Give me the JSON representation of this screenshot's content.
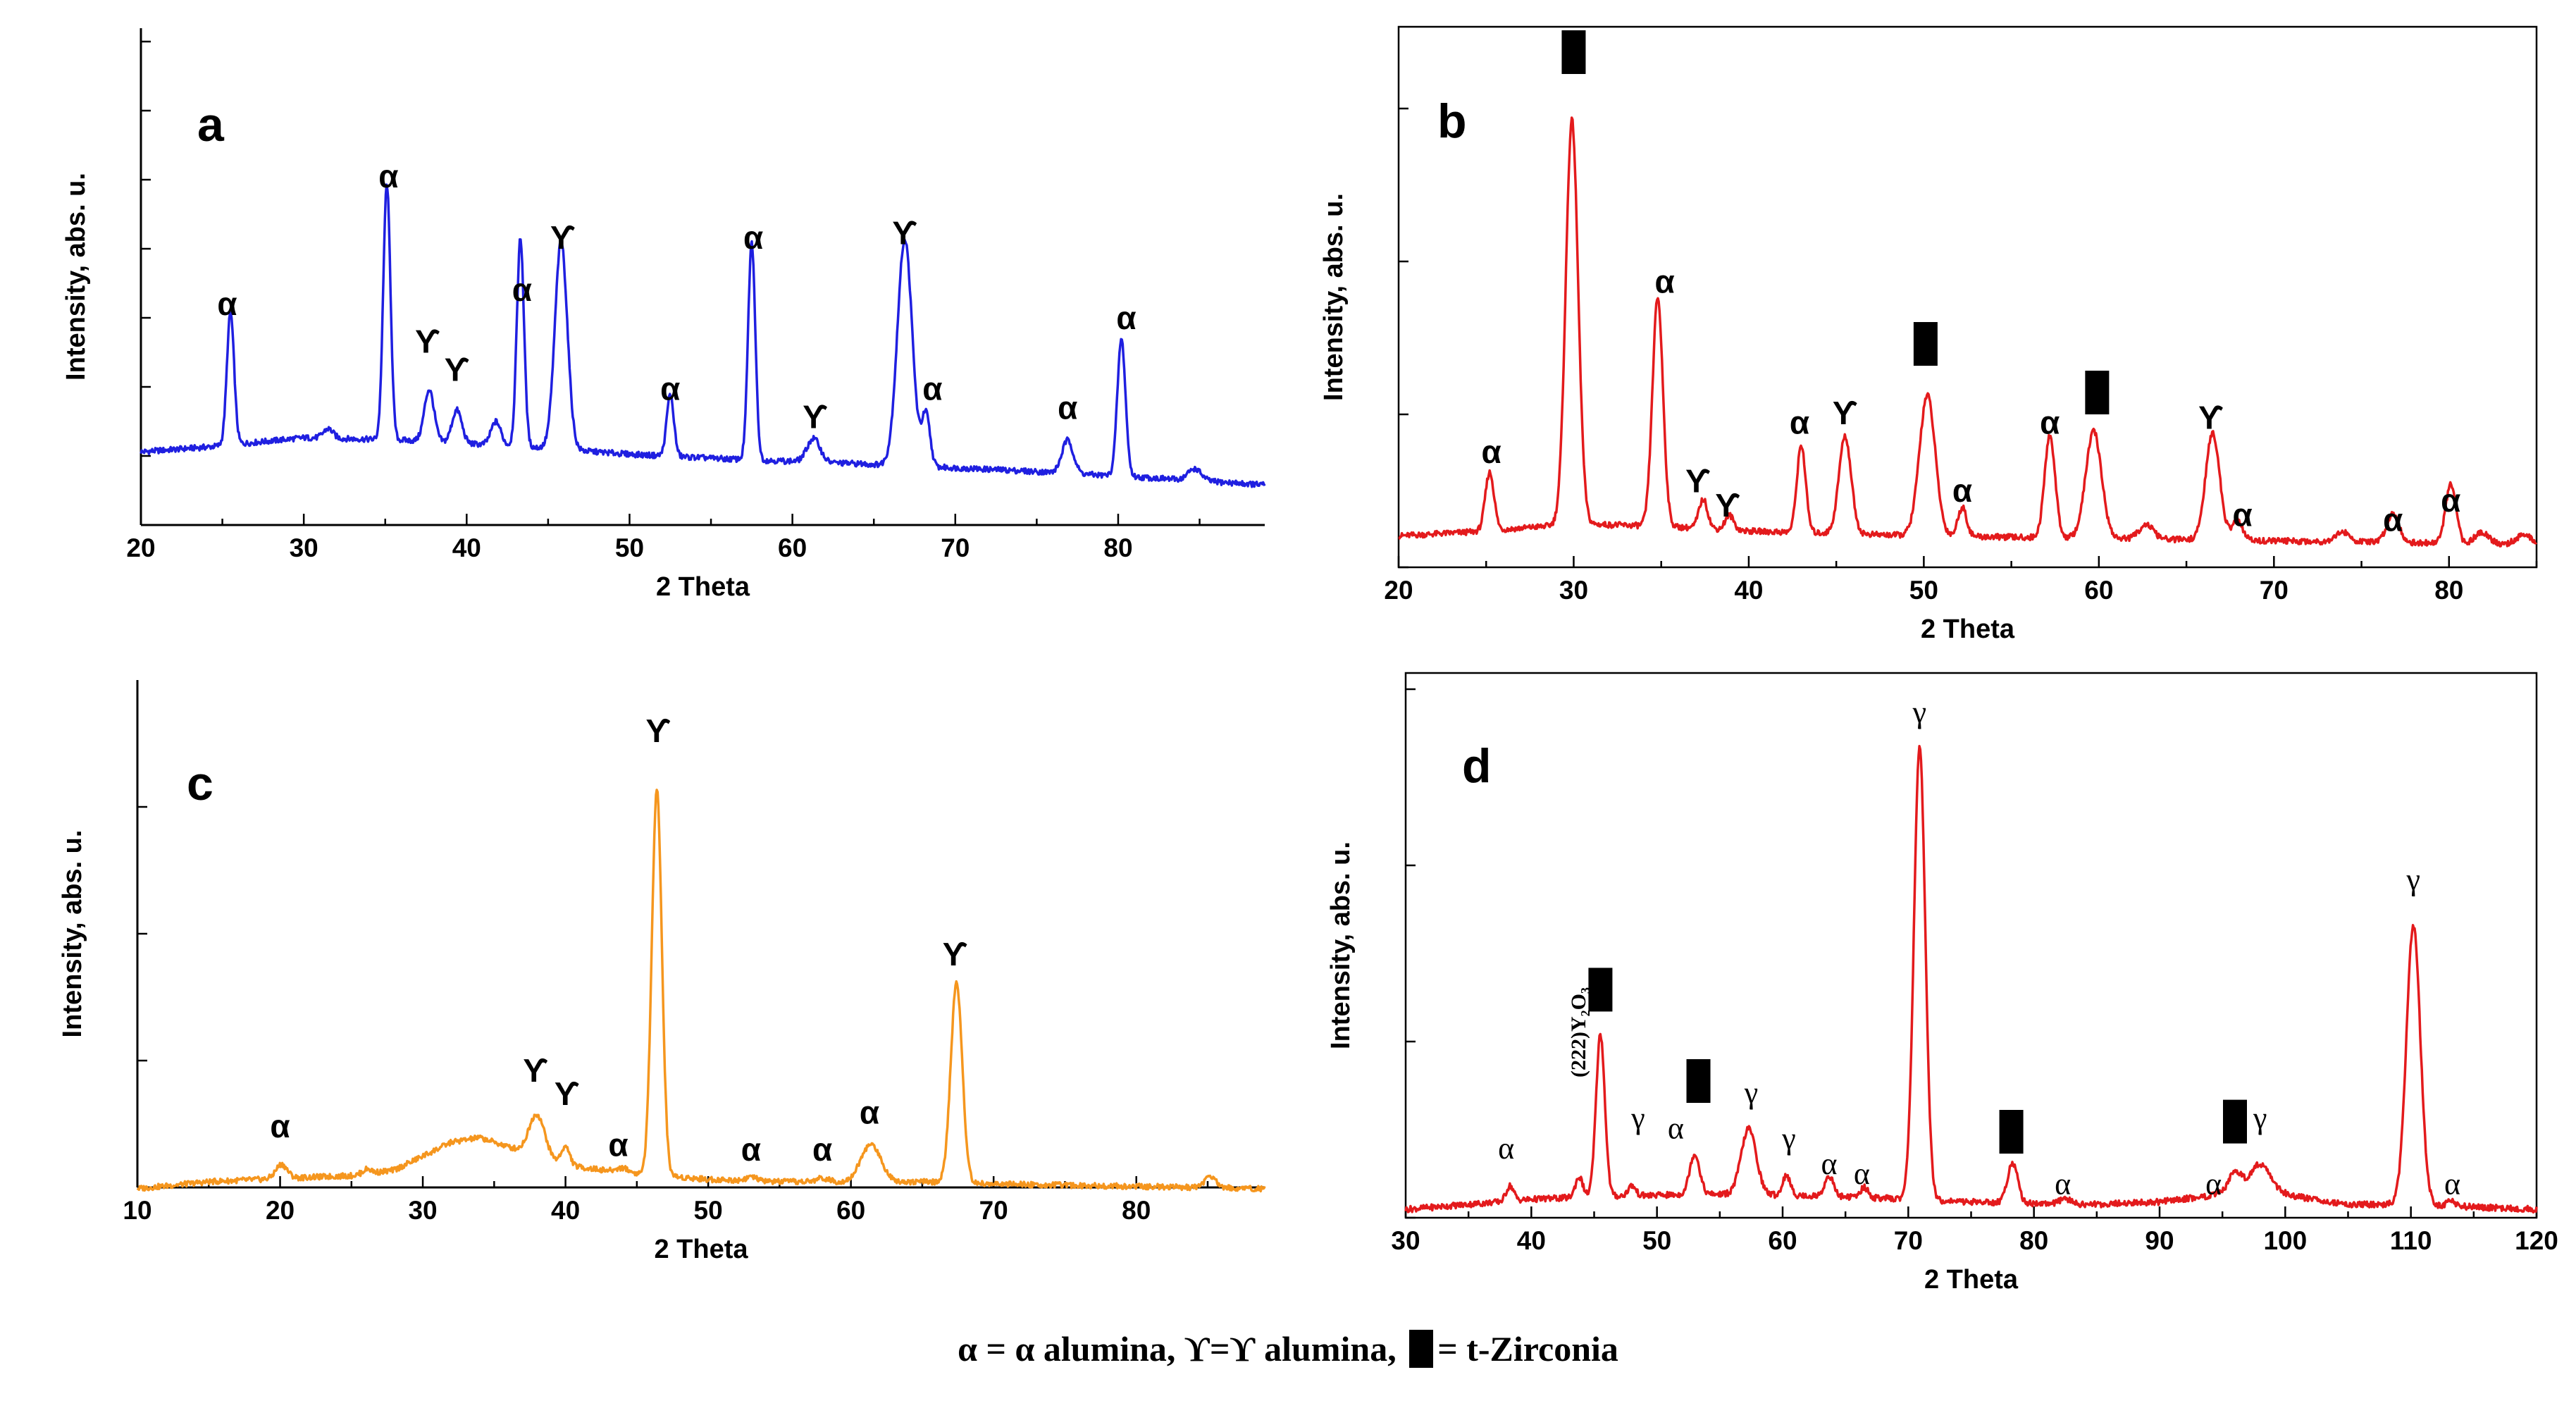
{
  "figure": {
    "legend_text": {
      "alpha": "α = α alumina,",
      "gamma": "ϒ=ϒ alumina,",
      "zirconia": "= t-Zirconia"
    }
  },
  "chart_data": [
    {
      "panel": "a",
      "type": "line",
      "color": "#1f1fe0",
      "xlabel": "2 Theta",
      "ylabel": "Intensity, abs. u.",
      "xlim": [
        20,
        89
      ],
      "xticks": [
        20,
        30,
        40,
        50,
        60,
        70,
        80
      ],
      "ylim": [
        0,
        100
      ],
      "baseline": [
        [
          20,
          14
        ],
        [
          24,
          15
        ],
        [
          30,
          17
        ],
        [
          36,
          16.5
        ],
        [
          44,
          15
        ],
        [
          50,
          13.5
        ],
        [
          56,
          12.5
        ],
        [
          64,
          11.5
        ],
        [
          74,
          10
        ],
        [
          82,
          8.5
        ],
        [
          89,
          7
        ]
      ],
      "peaks": [
        {
          "x": 25.5,
          "h": 28,
          "w": 0.22
        },
        {
          "x": 31.5,
          "h": 2,
          "w": 0.3
        },
        {
          "x": 35.1,
          "h": 54,
          "w": 0.22
        },
        {
          "x": 37.7,
          "h": 11,
          "w": 0.3
        },
        {
          "x": 39.4,
          "h": 7,
          "w": 0.3
        },
        {
          "x": 41.8,
          "h": 5,
          "w": 0.3
        },
        {
          "x": 43.3,
          "h": 44,
          "w": 0.22
        },
        {
          "x": 45.8,
          "h": 44,
          "w": 0.38
        },
        {
          "x": 52.5,
          "h": 13,
          "w": 0.22
        },
        {
          "x": 57.5,
          "h": 46,
          "w": 0.22
        },
        {
          "x": 61.3,
          "h": 5,
          "w": 0.4
        },
        {
          "x": 66.9,
          "h": 48,
          "w": 0.45
        },
        {
          "x": 68.2,
          "h": 11,
          "w": 0.25
        },
        {
          "x": 76.9,
          "h": 7,
          "w": 0.35
        },
        {
          "x": 80.2,
          "h": 29,
          "w": 0.25
        },
        {
          "x": 84.7,
          "h": 2.5,
          "w": 0.4
        }
      ],
      "annotations": [
        {
          "x": 25.3,
          "y": 43,
          "label": "α"
        },
        {
          "x": 35.2,
          "y": 70,
          "label": "α"
        },
        {
          "x": 37.6,
          "y": 35,
          "label": "ϒ"
        },
        {
          "x": 39.4,
          "y": 29,
          "label": "ϒ"
        },
        {
          "x": 43.4,
          "y": 46,
          "label": "α"
        },
        {
          "x": 45.9,
          "y": 57,
          "label": "ϒ"
        },
        {
          "x": 52.5,
          "y": 25,
          "label": "α"
        },
        {
          "x": 57.6,
          "y": 57,
          "label": "α"
        },
        {
          "x": 61.4,
          "y": 19,
          "label": "ϒ"
        },
        {
          "x": 66.9,
          "y": 58,
          "label": "ϒ"
        },
        {
          "x": 68.6,
          "y": 25,
          "label": "α"
        },
        {
          "x": 76.9,
          "y": 21,
          "label": "α"
        },
        {
          "x": 80.5,
          "y": 40,
          "label": "α"
        }
      ]
    },
    {
      "panel": "b",
      "type": "line",
      "color": "#e31a1c",
      "xlabel": "2 Theta",
      "ylabel": "Intensity, abs. u.",
      "xlim": [
        20,
        85
      ],
      "xticks": [
        20,
        30,
        40,
        50,
        60,
        70,
        80
      ],
      "ylim": [
        0,
        100
      ],
      "baseline": [
        [
          20,
          5
        ],
        [
          25,
          6
        ],
        [
          30,
          7.5
        ],
        [
          35,
          7
        ],
        [
          40,
          6
        ],
        [
          45,
          5.5
        ],
        [
          50,
          5
        ],
        [
          60,
          4.5
        ],
        [
          70,
          4
        ],
        [
          80,
          3.5
        ],
        [
          85,
          3
        ]
      ],
      "peaks": [
        {
          "x": 25.2,
          "h": 12,
          "w": 0.25
        },
        {
          "x": 29.9,
          "h": 83,
          "w": 0.35
        },
        {
          "x": 34.8,
          "h": 47,
          "w": 0.3
        },
        {
          "x": 37.4,
          "h": 6,
          "w": 0.25
        },
        {
          "x": 38.9,
          "h": 3,
          "w": 0.25
        },
        {
          "x": 43.0,
          "h": 18,
          "w": 0.25
        },
        {
          "x": 45.5,
          "h": 20,
          "w": 0.35
        },
        {
          "x": 50.2,
          "h": 29,
          "w": 0.45
        },
        {
          "x": 52.2,
          "h": 6,
          "w": 0.25
        },
        {
          "x": 57.2,
          "h": 21,
          "w": 0.3
        },
        {
          "x": 59.7,
          "h": 22,
          "w": 0.45
        },
        {
          "x": 62.7,
          "h": 3,
          "w": 0.4
        },
        {
          "x": 66.5,
          "h": 22,
          "w": 0.4
        },
        {
          "x": 67.9,
          "h": 4,
          "w": 0.3
        },
        {
          "x": 73.9,
          "h": 2,
          "w": 0.4
        },
        {
          "x": 76.8,
          "h": 6,
          "w": 0.35
        },
        {
          "x": 80.1,
          "h": 12,
          "w": 0.3
        },
        {
          "x": 81.9,
          "h": 2.5,
          "w": 0.4
        },
        {
          "x": 84.3,
          "h": 2,
          "w": 0.5
        }
      ],
      "annotations": [
        {
          "x": 25.3,
          "y": 20,
          "label": "α"
        },
        {
          "x": 30.0,
          "y": 100,
          "label": "█"
        },
        {
          "x": 35.2,
          "y": 55,
          "label": "α"
        },
        {
          "x": 37.1,
          "y": 14,
          "label": "ϒ"
        },
        {
          "x": 38.8,
          "y": 9,
          "label": "ϒ"
        },
        {
          "x": 42.9,
          "y": 26,
          "label": "α"
        },
        {
          "x": 45.5,
          "y": 28,
          "label": "ϒ"
        },
        {
          "x": 50.1,
          "y": 40,
          "label": "█"
        },
        {
          "x": 52.2,
          "y": 12,
          "label": "α"
        },
        {
          "x": 57.2,
          "y": 26,
          "label": "α"
        },
        {
          "x": 59.9,
          "y": 30,
          "label": "█"
        },
        {
          "x": 66.4,
          "y": 27,
          "label": "ϒ"
        },
        {
          "x": 68.2,
          "y": 7,
          "label": "α"
        },
        {
          "x": 76.8,
          "y": 6,
          "label": "α"
        },
        {
          "x": 80.1,
          "y": 10,
          "label": "α"
        }
      ]
    },
    {
      "panel": "c",
      "type": "line",
      "color": "#f5961e",
      "xlabel": "2 Theta",
      "ylabel": "Intensity, abs. u.",
      "xlim": [
        10,
        89
      ],
      "xticks": [
        10,
        20,
        30,
        40,
        50,
        60,
        70,
        80
      ],
      "ylim": [
        0,
        100
      ],
      "baseline": [
        [
          10,
          2
        ],
        [
          15,
          3.5
        ],
        [
          20,
          4.2
        ],
        [
          25,
          4.8
        ],
        [
          28,
          6
        ],
        [
          30,
          9
        ],
        [
          32,
          12
        ],
        [
          34,
          13
        ],
        [
          36,
          11
        ],
        [
          38,
          9
        ],
        [
          40,
          7
        ],
        [
          44,
          5.5
        ],
        [
          50,
          4
        ],
        [
          55,
          3.5
        ],
        [
          60,
          3.5
        ],
        [
          65,
          3.5
        ],
        [
          70,
          3
        ],
        [
          80,
          2.5
        ],
        [
          89,
          2
        ]
      ],
      "peaks": [
        {
          "x": 20.1,
          "h": 3,
          "w": 0.4
        },
        {
          "x": 26.1,
          "h": 1,
          "w": 0.3
        },
        {
          "x": 38.0,
          "h": 9,
          "w": 0.55
        },
        {
          "x": 40.0,
          "h": 4,
          "w": 0.3
        },
        {
          "x": 44.0,
          "h": 1,
          "w": 0.4
        },
        {
          "x": 46.4,
          "h": 83,
          "w": 0.35
        },
        {
          "x": 53.0,
          "h": 0.8,
          "w": 0.4
        },
        {
          "x": 58.0,
          "h": 0.8,
          "w": 0.4
        },
        {
          "x": 61.4,
          "h": 8,
          "w": 0.7
        },
        {
          "x": 67.4,
          "h": 43,
          "w": 0.4
        },
        {
          "x": 85.2,
          "h": 2.5,
          "w": 0.4
        }
      ],
      "annotations": [
        {
          "x": 20.0,
          "y": 13,
          "label": "α"
        },
        {
          "x": 37.9,
          "y": 25,
          "label": "ϒ"
        },
        {
          "x": 40.1,
          "y": 20,
          "label": "ϒ"
        },
        {
          "x": 43.7,
          "y": 9,
          "label": "α"
        },
        {
          "x": 46.5,
          "y": 98,
          "label": "ϒ"
        },
        {
          "x": 53.0,
          "y": 8,
          "label": "α"
        },
        {
          "x": 58.0,
          "y": 8,
          "label": "α"
        },
        {
          "x": 61.3,
          "y": 16,
          "label": "α"
        },
        {
          "x": 67.3,
          "y": 50,
          "label": "ϒ"
        }
      ]
    },
    {
      "panel": "d",
      "type": "line",
      "color": "#e31a1c",
      "xlabel": "2 Theta",
      "ylabel": "Intensity, abs. u.",
      "xlim": [
        30,
        120
      ],
      "xticks": [
        30,
        40,
        50,
        60,
        70,
        80,
        90,
        100,
        110,
        120
      ],
      "ylim": [
        0,
        100
      ],
      "baseline": [
        [
          30,
          4
        ],
        [
          35,
          5
        ],
        [
          40,
          6
        ],
        [
          45,
          6.5
        ],
        [
          50,
          6.8
        ],
        [
          55,
          7
        ],
        [
          60,
          6.8
        ],
        [
          65,
          6.5
        ],
        [
          70,
          6
        ],
        [
          75,
          5.5
        ],
        [
          80,
          5.2
        ],
        [
          85,
          5
        ],
        [
          90,
          5.5
        ],
        [
          95,
          7
        ],
        [
          98,
          8
        ],
        [
          101,
          6.5
        ],
        [
          105,
          5
        ],
        [
          110,
          5
        ],
        [
          115,
          4.5
        ],
        [
          120,
          4
        ]
      ],
      "peaks": [
        {
          "x": 38.3,
          "h": 3,
          "w": 0.3
        },
        {
          "x": 43.8,
          "h": 4,
          "w": 0.3
        },
        {
          "x": 45.5,
          "h": 32,
          "w": 0.35
        },
        {
          "x": 48.0,
          "h": 2,
          "w": 0.3
        },
        {
          "x": 53.0,
          "h": 8,
          "w": 0.4
        },
        {
          "x": 57.3,
          "h": 13,
          "w": 0.6
        },
        {
          "x": 60.3,
          "h": 4,
          "w": 0.3
        },
        {
          "x": 63.7,
          "h": 4,
          "w": 0.35
        },
        {
          "x": 66.5,
          "h": 2,
          "w": 0.3
        },
        {
          "x": 70.9,
          "h": 89,
          "w": 0.45
        },
        {
          "x": 78.3,
          "h": 8,
          "w": 0.4
        },
        {
          "x": 82.5,
          "h": 1,
          "w": 0.4
        },
        {
          "x": 96.0,
          "h": 4,
          "w": 0.5
        },
        {
          "x": 98.0,
          "h": 5,
          "w": 0.8
        },
        {
          "x": 110.2,
          "h": 55,
          "w": 0.55
        },
        {
          "x": 113.2,
          "h": 1,
          "w": 0.3
        }
      ],
      "annotations": [
        {
          "x": 38.0,
          "y": 14,
          "label": "α"
        },
        {
          "x": 45.5,
          "y": 43,
          "label": "█"
        },
        {
          "x": 48.5,
          "y": 20,
          "label": "γ"
        },
        {
          "x": 51.5,
          "y": 18,
          "label": "α"
        },
        {
          "x": 53.3,
          "y": 25,
          "label": "█"
        },
        {
          "x": 57.5,
          "y": 25,
          "label": "γ"
        },
        {
          "x": 60.5,
          "y": 16,
          "label": "γ"
        },
        {
          "x": 63.7,
          "y": 11,
          "label": "α"
        },
        {
          "x": 66.3,
          "y": 9,
          "label": "α"
        },
        {
          "x": 70.9,
          "y": 100,
          "label": "γ"
        },
        {
          "x": 78.2,
          "y": 15,
          "label": "█"
        },
        {
          "x": 82.3,
          "y": 7,
          "label": "α"
        },
        {
          "x": 94.3,
          "y": 7,
          "label": "α"
        },
        {
          "x": 96.0,
          "y": 17,
          "label": "█"
        },
        {
          "x": 98.0,
          "y": 20,
          "label": "γ"
        },
        {
          "x": 110.2,
          "y": 67,
          "label": "γ"
        },
        {
          "x": 113.3,
          "y": 7,
          "label": "α"
        }
      ],
      "extra_label": {
        "x": 44.3,
        "y": 30,
        "label": "(222)Y₂O₃"
      }
    }
  ]
}
